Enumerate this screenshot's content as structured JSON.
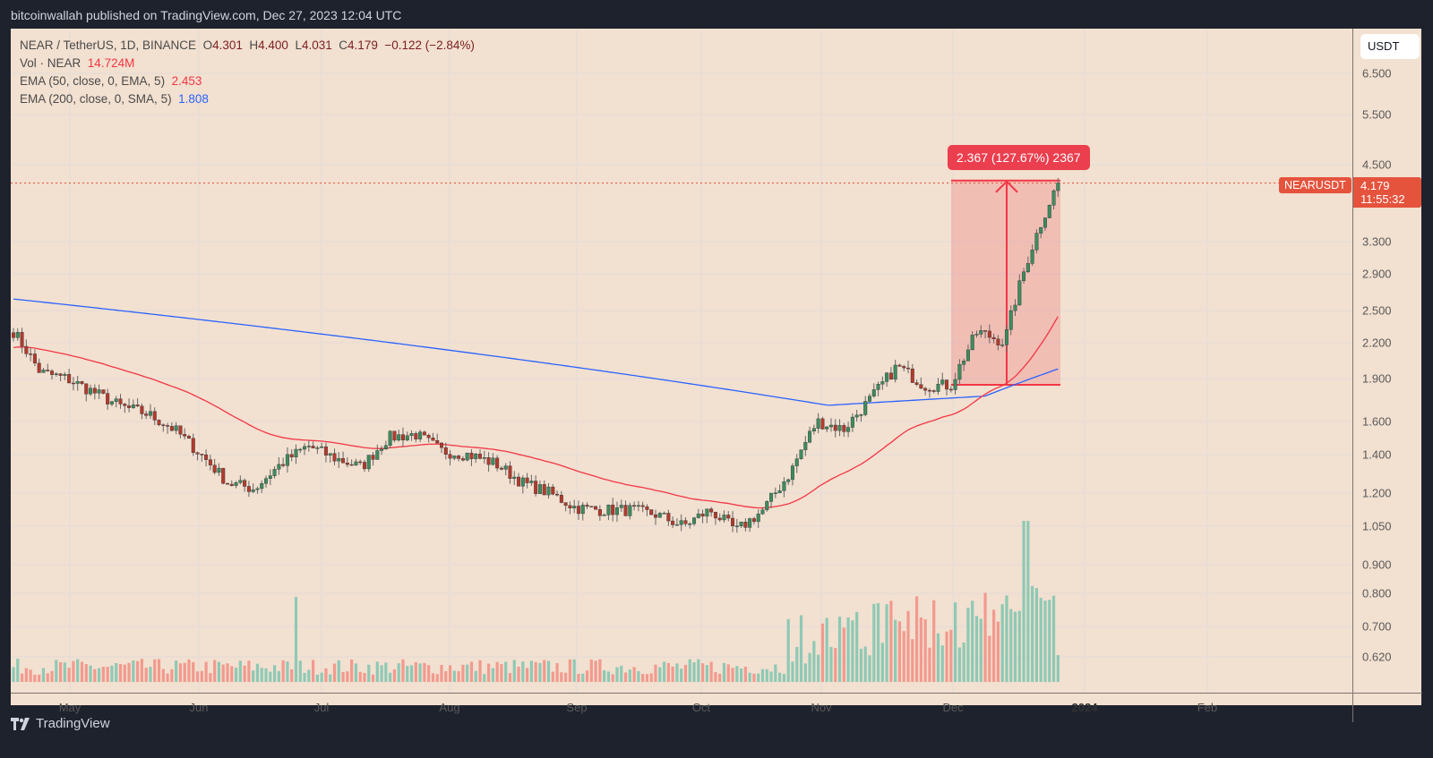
{
  "header": {
    "published": "bitcoinwallah published on TradingView.com, Dec 27, 2023 12:04 UTC"
  },
  "legend": {
    "symbol": "NEAR / TetherUS, 1D, BINANCE",
    "o_label": "O",
    "o": "4.301",
    "h_label": "H",
    "h": "4.400",
    "l_label": "L",
    "l": "4.031",
    "c_label": "C",
    "c": "4.179",
    "change": "−0.122 (−2.84%)",
    "vol_label": "Vol · NEAR",
    "vol": "14.724M",
    "ema50_label": "EMA (50, close, 0, EMA, 5)",
    "ema50": "2.453",
    "ema200_label": "EMA (200, close, 0, SMA, 5)",
    "ema200": "1.808"
  },
  "price_axis": {
    "currency_button": "USDT",
    "ticks": [
      "6.500",
      "5.500",
      "4.500",
      "3.300",
      "2.900",
      "2.500",
      "2.200",
      "1.900",
      "1.600",
      "1.400",
      "1.200",
      "1.050",
      "0.900",
      "0.800",
      "0.700",
      "0.620"
    ],
    "last_price": "4.179",
    "countdown": "11:55:32"
  },
  "symbol_label": "NEARUSDT",
  "measure_label": "2.367 (127.67%) 2367",
  "time_axis": {
    "ticks": [
      "May",
      "Jun",
      "Jul",
      "Aug",
      "Sep",
      "Oct",
      "Nov",
      "Dec",
      "2024",
      "Feb"
    ]
  },
  "footer": {
    "brand": "TradingView"
  },
  "colors": {
    "up": "#26a69a",
    "down": "#ef5350",
    "candle_up": "#3d8c5e",
    "candle_down": "#b33a2e",
    "ema50": "#f23645",
    "ema200": "#2962ff",
    "bg": "#f2e0d0",
    "measure": "#eb3e4e"
  },
  "chart_data": {
    "type": "candlestick",
    "title": "NEAR / TetherUS, 1D, BINANCE",
    "scale": "log",
    "ylim": [
      0.58,
      7.2
    ],
    "x_range": [
      "2023-04-22",
      "2024-02-28"
    ],
    "yticks": [
      6.5,
      5.5,
      4.5,
      3.3,
      2.9,
      2.5,
      2.2,
      1.9,
      1.6,
      1.4,
      1.2,
      1.05,
      0.9,
      0.8,
      0.7,
      0.62
    ],
    "xticks": [
      "May",
      "Jun",
      "Jul",
      "Aug",
      "Sep",
      "Oct",
      "Nov",
      "Dec",
      "2024",
      "Feb"
    ],
    "close_approx_weekly": [
      2.3,
      1.95,
      1.9,
      1.8,
      1.7,
      1.65,
      1.55,
      1.4,
      1.25,
      1.22,
      1.35,
      1.45,
      1.38,
      1.33,
      1.5,
      1.52,
      1.42,
      1.4,
      1.35,
      1.25,
      1.2,
      1.13,
      1.12,
      1.12,
      1.1,
      1.05,
      1.12,
      1.03,
      1.12,
      1.3,
      1.6,
      1.55,
      1.75,
      2.0,
      1.85,
      1.85,
      2.3,
      2.2,
      3.2,
      4.18
    ],
    "last": {
      "open": 4.301,
      "high": 4.4,
      "low": 4.031,
      "close": 4.179,
      "change": -0.122,
      "change_pct": -2.84
    },
    "indicators": [
      {
        "name": "EMA 50",
        "last": 2.453,
        "color": "#f23645"
      },
      {
        "name": "EMA 200",
        "last": 1.808,
        "color": "#2962ff"
      }
    ],
    "volume": {
      "last": "14.724M",
      "peak_date": "~Dec 20 2023"
    },
    "measure": {
      "from": 1.854,
      "to": 4.221,
      "delta": 2.367,
      "pct": 127.67,
      "bars": 2367
    }
  }
}
